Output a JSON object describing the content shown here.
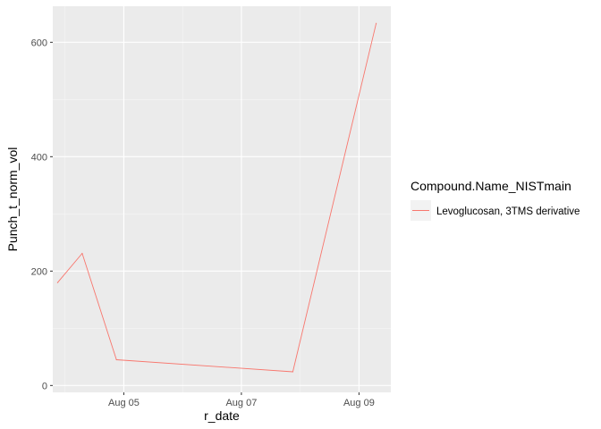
{
  "chart_data": {
    "type": "line",
    "title": "",
    "xlabel": "r_date",
    "ylabel": "Punch_t_norm_vol",
    "x_tick_labels": [
      "Aug 05",
      "Aug 07",
      "Aug 09"
    ],
    "x_ticks": [
      "2023-08-05",
      "2023-08-07",
      "2023-08-09"
    ],
    "y_ticks": [
      0,
      200,
      400,
      600
    ],
    "xlim": [
      "2023-08-03T19:00",
      "2023-08-09T13:00"
    ],
    "ylim": [
      -12,
      663
    ],
    "grid": true,
    "legend": {
      "position": "right",
      "title": "Compound.Name_NISTmain"
    },
    "series": [
      {
        "name": "Levoglucosan, 3TMS derivative",
        "color": "#f8766d",
        "x": [
          "2023-08-03T21:00",
          "2023-08-04T07:00",
          "2023-08-04T21:00",
          "2023-08-07T21:00",
          "2023-08-09T07:00"
        ],
        "values": [
          180,
          231,
          45,
          24,
          633
        ]
      }
    ]
  },
  "colors": {
    "panel_background": "#ebebeb",
    "grid_major": "#ffffff",
    "grid_minor": "#f5f5f5",
    "series_line": "#f8766d"
  }
}
